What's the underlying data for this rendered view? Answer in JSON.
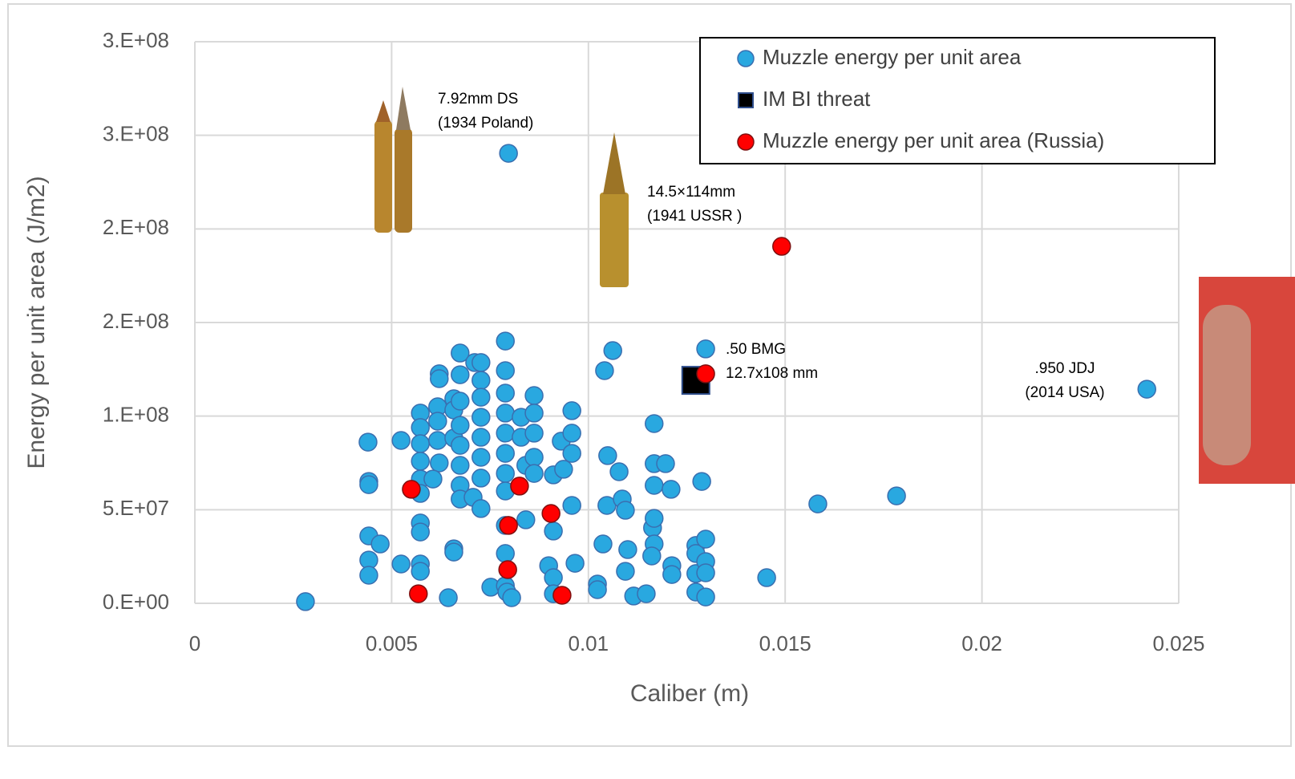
{
  "chart_data": {
    "type": "scatter",
    "x_label": "Caliber (m)",
    "y_label": "Energy per unit area (J/m2)",
    "xlim": [
      0,
      0.025
    ],
    "xticks": [
      0,
      0.005,
      0.01,
      0.015,
      0.02,
      0.025
    ],
    "ylim": [
      0,
      300000000
    ],
    "yticks": [
      {
        "value": 0,
        "label": "0.E+00"
      },
      {
        "value": 50000000,
        "label": "5.E+07"
      },
      {
        "value": 100000000,
        "label": "1.E+08"
      },
      {
        "value": 150000000,
        "label": "2.E+08"
      },
      {
        "value": 200000000,
        "label": "2.E+08"
      },
      {
        "value": 250000000,
        "label": "3.E+08"
      },
      {
        "value": 300000000,
        "label": "3.E+08"
      }
    ],
    "grid": true,
    "legend": "upper right",
    "series": [
      {
        "name": "Muzzle energy per unit area",
        "color": "#29a8e0",
        "marker": "circle",
        "x": [
          0.00281,
          0.0044,
          0.00442,
          0.00442,
          0.00442,
          0.00442,
          0.00442,
          0.00471,
          0.00524,
          0.00524,
          0.00573,
          0.00573,
          0.00573,
          0.00573,
          0.00573,
          0.00573,
          0.00573,
          0.00573,
          0.00573,
          0.00573,
          0.00621,
          0.00621,
          0.00617,
          0.00617,
          0.00617,
          0.00621,
          0.00605,
          0.00644,
          0.00658,
          0.00658,
          0.00658,
          0.00658,
          0.00658,
          0.00674,
          0.00674,
          0.00674,
          0.00674,
          0.00674,
          0.00674,
          0.00674,
          0.00674,
          0.00707,
          0.00727,
          0.00711,
          0.00727,
          0.00727,
          0.00727,
          0.00727,
          0.00727,
          0.00727,
          0.00727,
          0.00752,
          0.00789,
          0.00789,
          0.00789,
          0.00789,
          0.00789,
          0.00789,
          0.00789,
          0.00789,
          0.00789,
          0.00789,
          0.00789,
          0.00793,
          0.00805,
          0.00829,
          0.00829,
          0.00841,
          0.00841,
          0.00862,
          0.00862,
          0.00862,
          0.00862,
          0.00862,
          0.00911,
          0.00911,
          0.00899,
          0.00911,
          0.00911,
          0.00931,
          0.00937,
          0.00958,
          0.00958,
          0.00958,
          0.00958,
          0.00966,
          0.01023,
          0.01023,
          0.01037,
          0.01041,
          0.01062,
          0.01049,
          0.01047,
          0.01078,
          0.01086,
          0.01094,
          0.011,
          0.01094,
          0.01115,
          0.01147,
          0.01163,
          0.01167,
          0.01167,
          0.01167,
          0.01167,
          0.01167,
          0.01161,
          0.01196,
          0.0121,
          0.01212,
          0.01212,
          0.01273,
          0.01273,
          0.01273,
          0.01273,
          0.01288,
          0.01298,
          0.01298,
          0.01298,
          0.01298,
          0.01298,
          0.01453,
          0.01583,
          0.01783,
          0.02419,
          0.00797
        ],
        "values": [
          900000,
          86100000,
          65100000,
          63400000,
          36000000,
          23100000,
          15000000,
          31700000,
          87000000,
          21000000,
          101600000,
          93900000,
          85300000,
          75900000,
          66400000,
          58700000,
          42900000,
          38100000,
          21000000,
          17100000,
          122600000,
          120000000,
          105000000,
          97300000,
          87000000,
          75000000,
          66400000,
          3000000,
          109300000,
          103300000,
          88300000,
          29100000,
          27400000,
          133700000,
          122100000,
          108000000,
          95100000,
          84400000,
          73700000,
          63000000,
          55700000,
          56600000,
          50600000,
          128600000,
          128600000,
          119100000,
          110100000,
          99400000,
          88700000,
          78000000,
          66900000,
          8600000,
          9400000,
          140100000,
          124300000,
          112300000,
          101600000,
          90900000,
          80100000,
          69400000,
          60000000,
          41600000,
          26600000,
          6000000,
          3000000,
          99400000,
          88700000,
          73700000,
          44600000,
          111000000,
          101600000,
          90900000,
          78000000,
          69400000,
          68600000,
          38600000,
          20100000,
          13700000,
          5100000,
          86600000,
          71600000,
          102900000,
          90900000,
          80100000,
          52300000,
          21400000,
          10300000,
          7300000,
          31700000,
          124300000,
          135000000,
          78900000,
          52300000,
          70300000,
          55700000,
          49700000,
          28700000,
          17100000,
          3900000,
          5100000,
          40300000,
          96000000,
          74600000,
          63000000,
          45400000,
          31700000,
          25300000,
          74600000,
          60900000,
          20100000,
          15400000,
          30900000,
          26600000,
          15900000,
          6000000,
          65100000,
          34300000,
          22300000,
          16300000,
          3400000,
          135900000,
          13700000,
          53100000,
          57400000,
          114400000,
          240400000
        ]
      },
      {
        "name": "IM BI threat",
        "color": "#000000",
        "marker": "square",
        "x": [
          0.01273
        ],
        "values": [
          119100000
        ]
      },
      {
        "name": "Muzzle energy per unit area (Russia)",
        "color": "#ff0000",
        "marker": "circle",
        "x": [
          0.0055,
          0.00825,
          0.00905,
          0.00797,
          0.00795,
          0.00568,
          0.00933,
          0.01298,
          0.01491
        ],
        "values": [
          60900000,
          62600000,
          48000000,
          41600000,
          18000000,
          5100000,
          4300000,
          122600000,
          190700000
        ]
      }
    ],
    "annotations": [
      {
        "lines": [
          "7.92mm DS",
          "(1934 Poland)"
        ]
      },
      {
        "lines": [
          "14.5×114mm",
          "(1941 USSR )"
        ]
      },
      {
        "lines": [
          ".50 BMG"
        ]
      },
      {
        "lines": [
          "12.7x108 mm"
        ]
      },
      {
        "lines": [
          ".950 JDJ",
          "(2014 USA)"
        ]
      }
    ]
  }
}
